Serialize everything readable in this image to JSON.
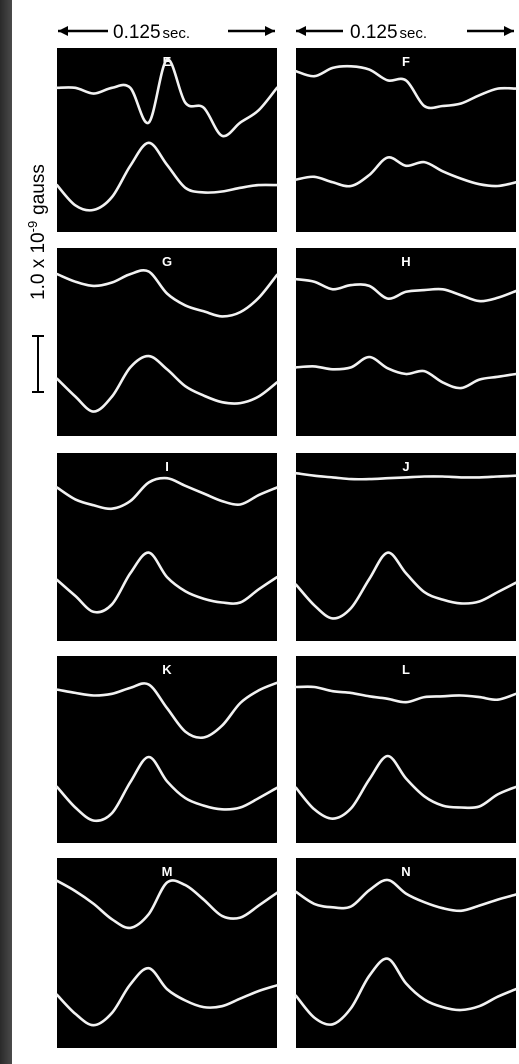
{
  "header": {
    "left_time_num": "0.125",
    "left_time_unit": "sec.",
    "right_time_num": "0.125",
    "right_time_unit": "sec."
  },
  "scale": {
    "label": "1.0 x 10",
    "exponent": "-9",
    "unit": "gauss"
  },
  "panels": [
    {
      "label": "E",
      "col": 0,
      "row": 0,
      "traces": [
        {
          "a": [
            0.64,
            0.64,
            0.57,
            0.64,
            0.64,
            0.22,
            0.98,
            0.46,
            0.4,
            0.06,
            0.22,
            0.37,
            0.64
          ]
        },
        {
          "a": [
            0.41,
            0.19,
            0.14,
            0.28,
            0.62,
            0.87,
            0.63,
            0.38,
            0.33,
            0.34,
            0.38,
            0.41,
            0.41
          ]
        }
      ]
    },
    {
      "label": "F",
      "col": 1,
      "row": 0,
      "traces": [
        {
          "a": [
            0.84,
            0.78,
            0.88,
            0.9,
            0.86,
            0.73,
            0.73,
            0.42,
            0.42,
            0.45,
            0.55,
            0.63,
            0.63
          ]
        },
        {
          "a": [
            0.47,
            0.5,
            0.44,
            0.4,
            0.52,
            0.71,
            0.62,
            0.66,
            0.56,
            0.48,
            0.42,
            0.4,
            0.44
          ]
        }
      ]
    },
    {
      "label": "G",
      "col": 0,
      "row": 1,
      "traces": [
        {
          "a": [
            0.81,
            0.72,
            0.67,
            0.71,
            0.81,
            0.84,
            0.58,
            0.44,
            0.37,
            0.31,
            0.36,
            0.53,
            0.8
          ]
        },
        {
          "a": [
            0.51,
            0.32,
            0.16,
            0.32,
            0.63,
            0.75,
            0.61,
            0.43,
            0.33,
            0.26,
            0.25,
            0.32,
            0.47
          ]
        }
      ]
    },
    {
      "label": "H",
      "col": 1,
      "row": 1,
      "traces": [
        {
          "a": [
            0.75,
            0.72,
            0.63,
            0.68,
            0.67,
            0.52,
            0.6,
            0.62,
            0.63,
            0.56,
            0.49,
            0.53,
            0.61
          ]
        },
        {
          "a": [
            0.63,
            0.64,
            0.61,
            0.63,
            0.74,
            0.62,
            0.56,
            0.59,
            0.47,
            0.41,
            0.5,
            0.53,
            0.56
          ]
        }
      ]
    },
    {
      "label": "I",
      "col": 0,
      "row": 2,
      "traces": [
        {
          "a": [
            0.71,
            0.57,
            0.5,
            0.46,
            0.55,
            0.77,
            0.82,
            0.73,
            0.64,
            0.55,
            0.51,
            0.62,
            0.71
          ]
        },
        {
          "a": [
            0.55,
            0.38,
            0.21,
            0.29,
            0.62,
            0.84,
            0.58,
            0.43,
            0.35,
            0.31,
            0.31,
            0.45,
            0.58
          ]
        }
      ]
    },
    {
      "label": "J",
      "col": 1,
      "row": 2,
      "traces": [
        {
          "a": [
            0.88,
            0.85,
            0.83,
            0.81,
            0.81,
            0.82,
            0.83,
            0.84,
            0.84,
            0.83,
            0.83,
            0.84,
            0.85
          ]
        },
        {
          "a": [
            0.5,
            0.28,
            0.14,
            0.25,
            0.56,
            0.84,
            0.62,
            0.42,
            0.34,
            0.3,
            0.32,
            0.42,
            0.52
          ]
        }
      ]
    },
    {
      "label": "K",
      "col": 0,
      "row": 3,
      "traces": [
        {
          "a": [
            0.72,
            0.68,
            0.65,
            0.67,
            0.74,
            0.78,
            0.5,
            0.22,
            0.15,
            0.29,
            0.56,
            0.71,
            0.8
          ]
        },
        {
          "a": [
            0.5,
            0.28,
            0.14,
            0.22,
            0.55,
            0.82,
            0.56,
            0.38,
            0.3,
            0.26,
            0.28,
            0.38,
            0.49
          ]
        }
      ]
    },
    {
      "label": "L",
      "col": 1,
      "row": 3,
      "traces": [
        {
          "a": [
            0.75,
            0.75,
            0.7,
            0.68,
            0.64,
            0.61,
            0.57,
            0.63,
            0.64,
            0.65,
            0.63,
            0.6,
            0.67
          ]
        },
        {
          "a": [
            0.49,
            0.26,
            0.16,
            0.27,
            0.58,
            0.83,
            0.59,
            0.4,
            0.3,
            0.28,
            0.29,
            0.42,
            0.5
          ]
        }
      ]
    },
    {
      "label": "M",
      "col": 0,
      "row": 4,
      "traces": [
        {
          "a": [
            0.85,
            0.73,
            0.58,
            0.4,
            0.3,
            0.46,
            0.83,
            0.8,
            0.63,
            0.44,
            0.42,
            0.56,
            0.71
          ]
        },
        {
          "a": [
            0.46,
            0.26,
            0.14,
            0.27,
            0.57,
            0.74,
            0.52,
            0.4,
            0.33,
            0.34,
            0.42,
            0.5,
            0.56
          ]
        }
      ]
    },
    {
      "label": "N",
      "col": 1,
      "row": 4,
      "traces": [
        {
          "a": [
            0.72,
            0.58,
            0.54,
            0.55,
            0.74,
            0.86,
            0.7,
            0.6,
            0.53,
            0.5,
            0.56,
            0.63,
            0.69
          ]
        },
        {
          "a": [
            0.45,
            0.22,
            0.15,
            0.32,
            0.66,
            0.84,
            0.58,
            0.41,
            0.33,
            0.3,
            0.34,
            0.44,
            0.52
          ]
        }
      ]
    }
  ]
}
